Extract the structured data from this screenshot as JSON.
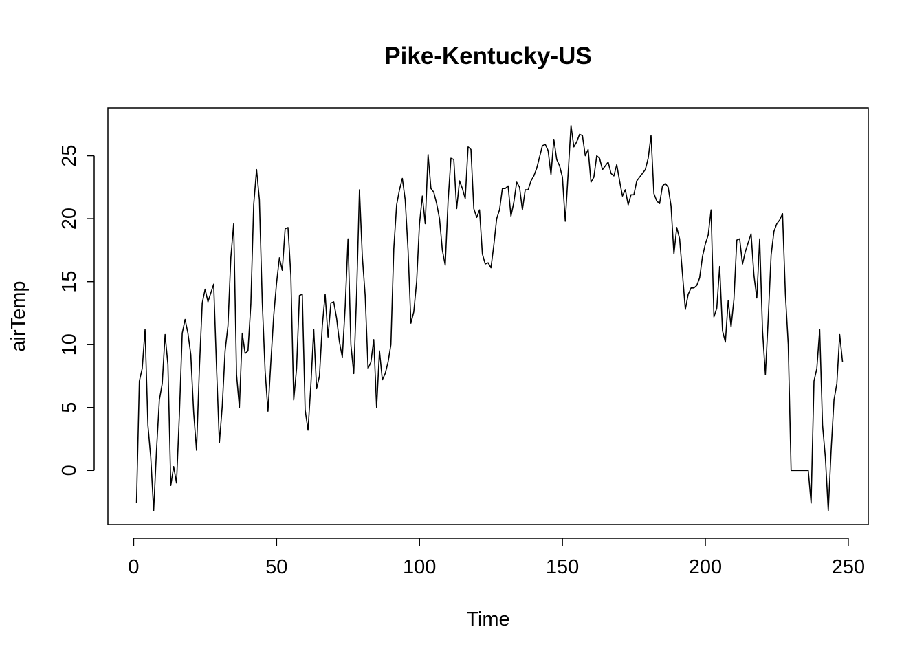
{
  "chart_data": {
    "type": "line",
    "title": "Pike-Kentucky-US",
    "xlabel": "Time",
    "ylabel": "airTemp",
    "xlim": [
      -9,
      257
    ],
    "ylim": [
      -4.3,
      28.8
    ],
    "xticks": [
      0,
      50,
      100,
      150,
      200,
      250
    ],
    "yticks": [
      0,
      5,
      10,
      15,
      20,
      25
    ],
    "grid": false,
    "series": [
      {
        "color": "#000000",
        "points": [
          [
            1,
            -2.6
          ],
          [
            2,
            7.1
          ],
          [
            3,
            8.1
          ],
          [
            4,
            11.2
          ],
          [
            5,
            3.6
          ],
          [
            6,
            1.0
          ],
          [
            7,
            -3.2
          ],
          [
            8,
            1.6
          ],
          [
            9,
            5.6
          ],
          [
            10,
            6.9
          ],
          [
            11,
            10.8
          ],
          [
            12,
            8.4
          ],
          [
            13,
            -1.2
          ],
          [
            14,
            0.3
          ],
          [
            15,
            -1.0
          ],
          [
            16,
            4.4
          ],
          [
            17,
            10.9
          ],
          [
            18,
            12.0
          ],
          [
            19,
            10.9
          ],
          [
            20,
            9.2
          ],
          [
            21,
            4.6
          ],
          [
            22,
            1.6
          ],
          [
            23,
            8.1
          ],
          [
            24,
            13.3
          ],
          [
            25,
            14.4
          ],
          [
            26,
            13.4
          ],
          [
            27,
            14.1
          ],
          [
            28,
            14.8
          ],
          [
            29,
            8.2
          ],
          [
            30,
            2.2
          ],
          [
            31,
            5.1
          ],
          [
            32,
            9.5
          ],
          [
            33,
            11.5
          ],
          [
            34,
            16.9
          ],
          [
            35,
            19.6
          ],
          [
            36,
            7.6
          ],
          [
            37,
            5.0
          ],
          [
            38,
            10.9
          ],
          [
            39,
            9.3
          ],
          [
            40,
            9.5
          ],
          [
            41,
            13.2
          ],
          [
            42,
            21.1
          ],
          [
            43,
            23.9
          ],
          [
            44,
            21.5
          ],
          [
            45,
            13.4
          ],
          [
            46,
            7.9
          ],
          [
            47,
            4.7
          ],
          [
            48,
            8.6
          ],
          [
            49,
            12.3
          ],
          [
            50,
            14.9
          ],
          [
            51,
            16.9
          ],
          [
            52,
            15.9
          ],
          [
            53,
            19.2
          ],
          [
            54,
            19.3
          ],
          [
            55,
            15.5
          ],
          [
            56,
            5.6
          ],
          [
            57,
            8.1
          ],
          [
            58,
            13.9
          ],
          [
            59,
            14.0
          ],
          [
            60,
            4.8
          ],
          [
            61,
            3.2
          ],
          [
            62,
            6.8
          ],
          [
            63,
            11.2
          ],
          [
            64,
            6.5
          ],
          [
            65,
            7.5
          ],
          [
            66,
            11.5
          ],
          [
            67,
            14.0
          ],
          [
            68,
            10.6
          ],
          [
            69,
            13.3
          ],
          [
            70,
            13.4
          ],
          [
            71,
            12.1
          ],
          [
            72,
            10.2
          ],
          [
            73,
            9.0
          ],
          [
            74,
            13.0
          ],
          [
            75,
            18.4
          ],
          [
            76,
            10.0
          ],
          [
            77,
            7.7
          ],
          [
            78,
            14.0
          ],
          [
            79,
            22.3
          ],
          [
            80,
            17.0
          ],
          [
            81,
            13.9
          ],
          [
            82,
            8.1
          ],
          [
            83,
            8.6
          ],
          [
            84,
            10.4
          ],
          [
            85,
            5.0
          ],
          [
            86,
            9.5
          ],
          [
            87,
            7.2
          ],
          [
            88,
            7.7
          ],
          [
            89,
            8.6
          ],
          [
            90,
            10.0
          ],
          [
            91,
            17.6
          ],
          [
            92,
            21.1
          ],
          [
            93,
            22.3
          ],
          [
            94,
            23.2
          ],
          [
            95,
            21.5
          ],
          [
            96,
            17.5
          ],
          [
            97,
            11.7
          ],
          [
            98,
            12.6
          ],
          [
            99,
            15.0
          ],
          [
            100,
            19.6
          ],
          [
            101,
            21.8
          ],
          [
            102,
            19.6
          ],
          [
            103,
            25.1
          ],
          [
            104,
            22.4
          ],
          [
            105,
            22.1
          ],
          [
            106,
            21.2
          ],
          [
            107,
            20.0
          ],
          [
            108,
            17.5
          ],
          [
            109,
            16.3
          ],
          [
            110,
            21.4
          ],
          [
            111,
            24.8
          ],
          [
            112,
            24.7
          ],
          [
            113,
            20.8
          ],
          [
            114,
            23.0
          ],
          [
            115,
            22.4
          ],
          [
            116,
            21.6
          ],
          [
            117,
            25.7
          ],
          [
            118,
            25.5
          ],
          [
            119,
            20.8
          ],
          [
            120,
            20.1
          ],
          [
            121,
            20.7
          ],
          [
            122,
            17.2
          ],
          [
            123,
            16.4
          ],
          [
            124,
            16.5
          ],
          [
            125,
            16.1
          ],
          [
            126,
            17.9
          ],
          [
            127,
            20.0
          ],
          [
            128,
            20.7
          ],
          [
            129,
            22.4
          ],
          [
            130,
            22.4
          ],
          [
            131,
            22.6
          ],
          [
            132,
            20.2
          ],
          [
            133,
            21.3
          ],
          [
            134,
            22.9
          ],
          [
            135,
            22.5
          ],
          [
            136,
            20.7
          ],
          [
            137,
            22.3
          ],
          [
            138,
            22.3
          ],
          [
            139,
            23.0
          ],
          [
            140,
            23.4
          ],
          [
            141,
            24.0
          ],
          [
            142,
            24.9
          ],
          [
            143,
            25.8
          ],
          [
            144,
            25.9
          ],
          [
            145,
            25.4
          ],
          [
            146,
            23.5
          ],
          [
            147,
            26.3
          ],
          [
            148,
            24.7
          ],
          [
            149,
            24.2
          ],
          [
            150,
            23.3
          ],
          [
            151,
            19.8
          ],
          [
            152,
            23.6
          ],
          [
            153,
            27.4
          ],
          [
            154,
            25.7
          ],
          [
            155,
            26.1
          ],
          [
            156,
            26.7
          ],
          [
            157,
            26.6
          ],
          [
            158,
            25.0
          ],
          [
            159,
            25.5
          ],
          [
            160,
            22.9
          ],
          [
            161,
            23.3
          ],
          [
            162,
            25.0
          ],
          [
            163,
            24.8
          ],
          [
            164,
            23.9
          ],
          [
            165,
            24.2
          ],
          [
            166,
            24.5
          ],
          [
            167,
            23.6
          ],
          [
            168,
            23.4
          ],
          [
            169,
            24.3
          ],
          [
            170,
            23.0
          ],
          [
            171,
            21.8
          ],
          [
            172,
            22.3
          ],
          [
            173,
            21.1
          ],
          [
            174,
            21.9
          ],
          [
            175,
            21.9
          ],
          [
            176,
            23.0
          ],
          [
            177,
            23.3
          ],
          [
            178,
            23.6
          ],
          [
            179,
            23.9
          ],
          [
            180,
            24.8
          ],
          [
            181,
            26.6
          ],
          [
            182,
            22.0
          ],
          [
            183,
            21.4
          ],
          [
            184,
            21.2
          ],
          [
            185,
            22.6
          ],
          [
            186,
            22.8
          ],
          [
            187,
            22.5
          ],
          [
            188,
            21.0
          ],
          [
            189,
            17.2
          ],
          [
            190,
            19.3
          ],
          [
            191,
            18.4
          ],
          [
            192,
            15.6
          ],
          [
            193,
            12.8
          ],
          [
            194,
            14.0
          ],
          [
            195,
            14.5
          ],
          [
            196,
            14.5
          ],
          [
            197,
            14.7
          ],
          [
            198,
            15.3
          ],
          [
            199,
            17.0
          ],
          [
            200,
            18.0
          ],
          [
            201,
            18.7
          ],
          [
            202,
            20.7
          ],
          [
            203,
            12.2
          ],
          [
            204,
            12.9
          ],
          [
            205,
            16.2
          ],
          [
            206,
            11.1
          ],
          [
            207,
            10.2
          ],
          [
            208,
            13.5
          ],
          [
            209,
            11.4
          ],
          [
            210,
            13.6
          ],
          [
            211,
            18.3
          ],
          [
            212,
            18.4
          ],
          [
            213,
            16.4
          ],
          [
            214,
            17.4
          ],
          [
            215,
            18.1
          ],
          [
            216,
            18.8
          ],
          [
            217,
            15.5
          ],
          [
            218,
            13.7
          ],
          [
            219,
            18.4
          ],
          [
            220,
            11.1
          ],
          [
            221,
            7.6
          ],
          [
            222,
            12.1
          ],
          [
            223,
            17.1
          ],
          [
            224,
            19.0
          ],
          [
            225,
            19.6
          ],
          [
            226,
            19.9
          ],
          [
            227,
            20.4
          ],
          [
            228,
            14.0
          ],
          [
            229,
            10.0
          ],
          [
            230,
            0.0
          ],
          [
            231,
            0.0
          ],
          [
            232,
            0.0
          ],
          [
            233,
            0.0
          ],
          [
            234,
            0.0
          ],
          [
            235,
            0.0
          ],
          [
            236,
            0.0
          ],
          [
            237,
            -2.6
          ],
          [
            238,
            7.1
          ],
          [
            239,
            8.1
          ],
          [
            240,
            11.2
          ],
          [
            241,
            3.6
          ],
          [
            242,
            1.0
          ],
          [
            243,
            -3.2
          ],
          [
            244,
            1.6
          ],
          [
            245,
            5.6
          ],
          [
            246,
            6.9
          ],
          [
            247,
            10.8
          ],
          [
            248,
            8.6
          ]
        ]
      }
    ]
  }
}
